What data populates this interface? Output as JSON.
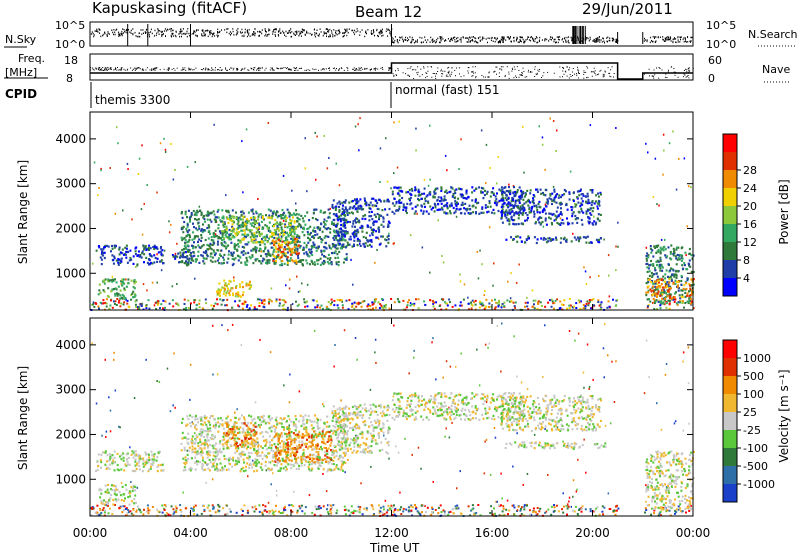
{
  "header": {
    "station": "Kapuskasing (fitACF)",
    "beam": "Beam 12",
    "date": "29/Jun/2011"
  },
  "top_panels": {
    "nsky_label": "N.Sky",
    "nsky_ticks": [
      "10^5",
      "10^0"
    ],
    "nsearch_label": "N.Search",
    "nsearch_ticks": [
      "10^5",
      "10^0"
    ],
    "freq_label_1": "Freq.",
    "freq_label_2": "[MHz]",
    "freq_ticks": [
      "18",
      "8"
    ],
    "nave_label": "Nave",
    "nave_ticks": [
      "60",
      "0"
    ],
    "cpid_label": "CPID",
    "cpid_segments": [
      {
        "label": "themis 3300",
        "start_hour": 0
      },
      {
        "label": "normal (fast) 151",
        "start_hour": 12
      }
    ]
  },
  "chart_data": [
    {
      "type": "heatmap",
      "name": "power",
      "ylabel": "Slant Range [km]",
      "xlabel": "",
      "ylim": [
        180,
        4600
      ],
      "xlim": [
        0,
        24
      ],
      "yticks": [
        "1000",
        "2000",
        "3000",
        "4000"
      ],
      "colorbar": {
        "label": "Power [dB]",
        "ticks": [
          "4",
          "8",
          "12",
          "16",
          "20",
          "24",
          "28"
        ],
        "colors": [
          "#0000ff",
          "#1f3ea8",
          "#2f7a3a",
          "#33a860",
          "#8cc83a",
          "#f0d000",
          "#f08a00",
          "#e03000",
          "#ff0000"
        ]
      },
      "regions": [
        {
          "t0": 0.2,
          "t1": 2.9,
          "r0": 1200,
          "r1": 1650,
          "level": 1
        },
        {
          "t0": 0.3,
          "t1": 1.8,
          "r0": 450,
          "r1": 900,
          "level": 3
        },
        {
          "t0": 3.2,
          "t1": 4.1,
          "r0": 1250,
          "r1": 1500,
          "level": 1
        },
        {
          "t0": 3.6,
          "t1": 10.2,
          "r0": 1200,
          "r1": 2450,
          "level": 2
        },
        {
          "t0": 5.2,
          "t1": 8.2,
          "r0": 1700,
          "r1": 2300,
          "level": 4
        },
        {
          "t0": 7.2,
          "t1": 8.3,
          "r0": 1250,
          "r1": 1800,
          "level": 6
        },
        {
          "t0": 5.0,
          "t1": 6.4,
          "r0": 500,
          "r1": 900,
          "level": 5
        },
        {
          "t0": 9.6,
          "t1": 11.9,
          "r0": 1600,
          "r1": 2700,
          "level": 1
        },
        {
          "t0": 12.0,
          "t1": 17.2,
          "r0": 2350,
          "r1": 2950,
          "level": 1
        },
        {
          "t0": 16.3,
          "t1": 20.3,
          "r0": 2100,
          "r1": 2900,
          "level": 1
        },
        {
          "t0": 16.5,
          "t1": 20.5,
          "r0": 1700,
          "r1": 1850,
          "level": 1
        },
        {
          "t0": 22.1,
          "t1": 24.0,
          "r0": 350,
          "r1": 1650,
          "level": 2
        },
        {
          "t0": 22.1,
          "t1": 24.0,
          "r0": 450,
          "r1": 900,
          "level": 6
        }
      ]
    },
    {
      "type": "heatmap",
      "name": "velocity",
      "ylabel": "Slant Range [km]",
      "xlabel": "Time UT",
      "ylim": [
        180,
        4600
      ],
      "xlim": [
        0,
        24
      ],
      "yticks": [
        "1000",
        "2000",
        "3000",
        "4000"
      ],
      "xticks": [
        "00:00",
        "04:00",
        "08:00",
        "12:00",
        "16:00",
        "20:00",
        "00:00"
      ],
      "colorbar": {
        "label": "Velocity [m s⁻¹]",
        "ticks": [
          "1000",
          "500",
          "100",
          "25",
          "-25",
          "-100",
          "-500",
          "-1000"
        ],
        "colors": [
          "#1a3fc8",
          "#2e6fa8",
          "#2f7a3a",
          "#5ac83a",
          "#c8c8c8",
          "#f0b830",
          "#f08a00",
          "#e03000",
          "#ff0000"
        ]
      },
      "regions": [
        {
          "t0": 0.2,
          "t1": 2.9,
          "r0": 1200,
          "r1": 1650,
          "level": 4
        },
        {
          "t0": 0.3,
          "t1": 1.8,
          "r0": 450,
          "r1": 900,
          "level": 4
        },
        {
          "t0": 3.6,
          "t1": 10.2,
          "r0": 1200,
          "r1": 2450,
          "level": 4
        },
        {
          "t0": 5.2,
          "t1": 6.6,
          "r0": 1750,
          "r1": 2300,
          "level": 6
        },
        {
          "t0": 7.3,
          "t1": 9.6,
          "r0": 1400,
          "r1": 2100,
          "level": 6
        },
        {
          "t0": 9.6,
          "t1": 11.9,
          "r0": 1600,
          "r1": 2700,
          "level": 4
        },
        {
          "t0": 12.0,
          "t1": 17.2,
          "r0": 2350,
          "r1": 2950,
          "level": 4
        },
        {
          "t0": 16.3,
          "t1": 20.3,
          "r0": 2100,
          "r1": 2900,
          "level": 4
        },
        {
          "t0": 16.5,
          "t1": 20.5,
          "r0": 1700,
          "r1": 1850,
          "level": 4
        },
        {
          "t0": 22.1,
          "t1": 24.0,
          "r0": 350,
          "r1": 1650,
          "level": 4
        }
      ]
    }
  ]
}
